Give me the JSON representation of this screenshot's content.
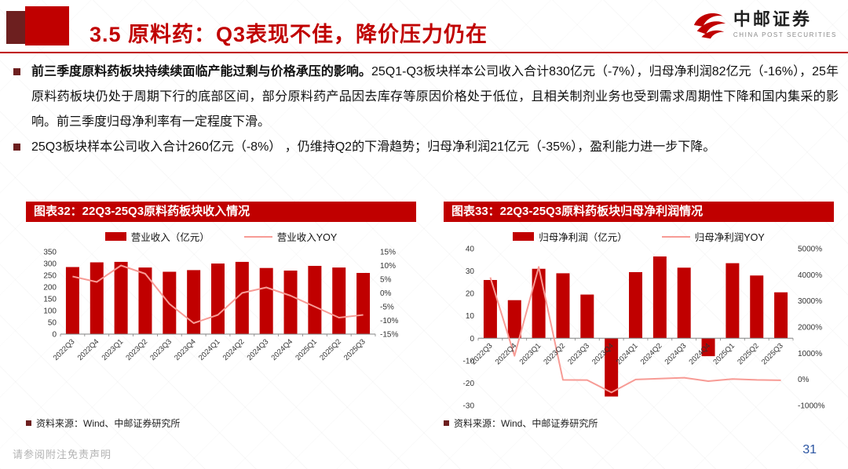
{
  "header": {
    "title": "3.5 原料药：Q3表现不佳，降价压力仍在",
    "logo": {
      "name_cn": "中邮证券",
      "name_en": "CHINA POST SECURITIES"
    }
  },
  "bullets": [
    {
      "bold": "前三季度原料药板块持续续面临产能过剩与价格承压的影响。",
      "text": "25Q1-Q3板块样本公司收入合计830亿元（-7%），归母净利润82亿元（-16%），25年原料药板块仍处于周期下行的底部区间，部分原料药产品因去库存等原因价格处于低位，且相关制剂业务也受到需求周期性下降和国内集采的影响。前三季度归母净利率有一定程度下滑。"
    },
    {
      "bold": "",
      "text": "25Q3板块样本公司收入合计260亿元（-8%） ，仍维持Q2的下滑趋势；归母净利润21亿元（-35%），盈利能力进一步下降。"
    }
  ],
  "figures": [
    {
      "title": "图表32：22Q3-25Q3原料药板块收入情况",
      "source": "资料来源：Wind、中邮证券研究所"
    },
    {
      "title": "图表33：22Q3-25Q3原料药板块归母净利润情况",
      "source": "资料来源：Wind、中邮证券研究所"
    }
  ],
  "footer": {
    "disclaimer": "请参阅附注免责声明",
    "page_number": "31"
  },
  "colors": {
    "accent_red": "#c00000",
    "line_red": "#f79b95",
    "dark_red": "#6d1f1f",
    "page_blue": "#2b55a2",
    "axis_text": "#333333",
    "axis_line": "#808080"
  },
  "chart_data": [
    {
      "type": "bar",
      "title": "图表32：22Q3-25Q3原料药板块收入情况",
      "categories": [
        "2022Q3",
        "2022Q4",
        "2023Q1",
        "2023Q2",
        "2023Q3",
        "2023Q4",
        "2024Q1",
        "2024Q2",
        "2024Q3",
        "2024Q4",
        "2025Q1",
        "2025Q2",
        "2025Q3"
      ],
      "series": [
        {
          "name": "营业收入（亿元）",
          "type": "bar",
          "axis": "left",
          "values": [
            285,
            305,
            307,
            283,
            265,
            272,
            300,
            307,
            281,
            270,
            290,
            283,
            260
          ]
        },
        {
          "name": "营业收入YOY",
          "type": "line",
          "axis": "right",
          "values": [
            6,
            4,
            10,
            7,
            -4,
            -11,
            -8,
            0,
            2,
            -1,
            -5,
            -9,
            -8
          ]
        }
      ],
      "left_axis": {
        "min": 0,
        "max": 350,
        "step": 50,
        "format": "number"
      },
      "right_axis": {
        "min": -15,
        "max": 15,
        "step": 5,
        "format": "percent"
      },
      "grid": false,
      "legend_position": "top"
    },
    {
      "type": "bar",
      "title": "图表33：22Q3-25Q3原料药板块归母净利润情况",
      "categories": [
        "2022Q3",
        "2022Q4",
        "2023Q1",
        "2023Q2",
        "2023Q3",
        "2023Q4",
        "2024Q1",
        "2024Q2",
        "2024Q3",
        "2024Q4",
        "2025Q1",
        "2025Q2",
        "2025Q3"
      ],
      "series": [
        {
          "name": "归母净利润（亿元）",
          "type": "bar",
          "axis": "left",
          "values": [
            26,
            17,
            31,
            29,
            19.5,
            -26,
            29.5,
            36.5,
            31.5,
            -8,
            33.5,
            28,
            20.5
          ]
        },
        {
          "name": "归母净利润YOY",
          "type": "line",
          "axis": "right",
          "values": [
            3900,
            900,
            4300,
            -20,
            -30,
            -500,
            -5,
            26,
            62,
            -69,
            14,
            -23,
            -35
          ]
        }
      ],
      "left_axis": {
        "min": -30,
        "max": 40,
        "step": 10,
        "format": "number"
      },
      "right_axis": {
        "min": -1000,
        "max": 5000,
        "step": 1000,
        "format": "percent"
      },
      "grid": false,
      "legend_position": "top"
    }
  ]
}
